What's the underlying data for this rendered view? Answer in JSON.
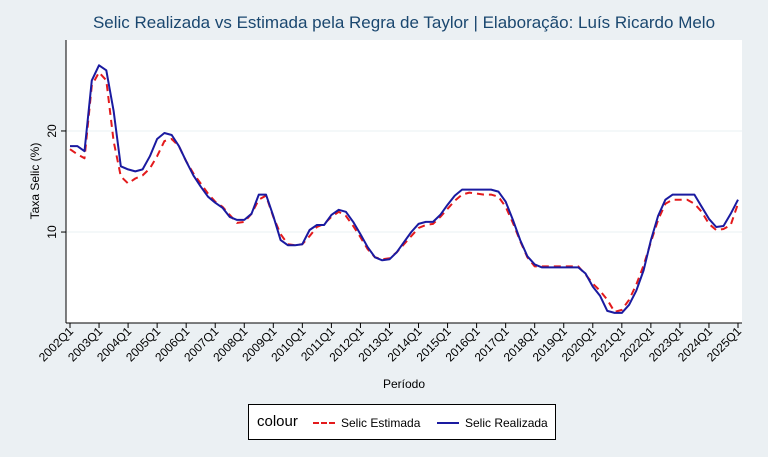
{
  "chart_data": {
    "type": "line",
    "title": "Selic Realizada vs Estimada pela Regra de Taylor | Elaboração: Luís Ricardo Melo",
    "xlabel": "Período",
    "ylabel": "Taxa Selic (%)",
    "ylim": [
      1,
      29
    ],
    "yticks": [
      10,
      20
    ],
    "xticks": [
      "2002Q1",
      "2003Q1",
      "2004Q1",
      "2005Q1",
      "2006Q1",
      "2007Q1",
      "2008Q1",
      "2009Q1",
      "2010Q1",
      "2011Q1",
      "2012Q1",
      "2013Q1",
      "2014Q1",
      "2015Q1",
      "2016Q1",
      "2017Q1",
      "2018Q1",
      "2019Q1",
      "2020Q1",
      "2021Q1",
      "2022Q1",
      "2023Q1",
      "2024Q1",
      "2025Q1"
    ],
    "grid": "horizontal",
    "legend_position": "bottom",
    "legend_title": "colour",
    "series": [
      {
        "name": "Selic Estimada",
        "color": "#e31a1c",
        "style": "dashed",
        "points": [
          [
            2002.0,
            18.2
          ],
          [
            2002.25,
            17.7
          ],
          [
            2002.5,
            17.3
          ],
          [
            2002.75,
            24.5
          ],
          [
            2003.0,
            25.8
          ],
          [
            2003.25,
            25.0
          ],
          [
            2003.5,
            19.0
          ],
          [
            2003.75,
            15.5
          ],
          [
            2004.0,
            14.8
          ],
          [
            2004.25,
            15.3
          ],
          [
            2004.5,
            15.6
          ],
          [
            2004.75,
            16.3
          ],
          [
            2005.0,
            17.5
          ],
          [
            2005.25,
            19.0
          ],
          [
            2005.5,
            19.2
          ],
          [
            2005.75,
            18.5
          ],
          [
            2006.0,
            17.0
          ],
          [
            2006.25,
            15.8
          ],
          [
            2006.5,
            14.8
          ],
          [
            2006.75,
            13.8
          ],
          [
            2007.0,
            13.0
          ],
          [
            2007.25,
            12.5
          ],
          [
            2007.5,
            11.7
          ],
          [
            2007.75,
            10.9
          ],
          [
            2008.0,
            11.0
          ],
          [
            2008.25,
            11.8
          ],
          [
            2008.5,
            13.2
          ],
          [
            2008.75,
            13.6
          ],
          [
            2009.0,
            11.5
          ],
          [
            2009.25,
            9.8
          ],
          [
            2009.5,
            8.8
          ],
          [
            2009.75,
            8.7
          ],
          [
            2010.0,
            8.8
          ],
          [
            2010.25,
            9.6
          ],
          [
            2010.5,
            10.5
          ],
          [
            2010.75,
            10.8
          ],
          [
            2011.0,
            11.5
          ],
          [
            2011.25,
            12.0
          ],
          [
            2011.5,
            11.6
          ],
          [
            2011.75,
            10.6
          ],
          [
            2012.0,
            9.5
          ],
          [
            2012.25,
            8.3
          ],
          [
            2012.5,
            7.5
          ],
          [
            2012.75,
            7.3
          ],
          [
            2013.0,
            7.4
          ],
          [
            2013.25,
            8.0
          ],
          [
            2013.5,
            8.8
          ],
          [
            2013.75,
            9.6
          ],
          [
            2014.0,
            10.4
          ],
          [
            2014.25,
            10.7
          ],
          [
            2014.5,
            10.8
          ],
          [
            2014.75,
            11.5
          ],
          [
            2015.0,
            12.3
          ],
          [
            2015.25,
            13.1
          ],
          [
            2015.5,
            13.7
          ],
          [
            2015.75,
            13.9
          ],
          [
            2016.0,
            13.8
          ],
          [
            2016.25,
            13.7
          ],
          [
            2016.5,
            13.7
          ],
          [
            2016.75,
            13.5
          ],
          [
            2017.0,
            12.5
          ],
          [
            2017.25,
            10.9
          ],
          [
            2017.5,
            9.1
          ],
          [
            2017.75,
            7.5
          ],
          [
            2018.0,
            6.6
          ],
          [
            2018.25,
            6.6
          ],
          [
            2018.5,
            6.6
          ],
          [
            2018.75,
            6.6
          ],
          [
            2019.0,
            6.6
          ],
          [
            2019.25,
            6.6
          ],
          [
            2019.5,
            6.6
          ],
          [
            2019.75,
            5.8
          ],
          [
            2020.0,
            4.9
          ],
          [
            2020.25,
            4.2
          ],
          [
            2020.5,
            3.3
          ],
          [
            2020.75,
            2.1
          ],
          [
            2021.0,
            2.3
          ],
          [
            2021.25,
            3.3
          ],
          [
            2021.5,
            4.8
          ],
          [
            2021.75,
            6.7
          ],
          [
            2022.0,
            9.0
          ],
          [
            2022.25,
            11.2
          ],
          [
            2022.5,
            12.8
          ],
          [
            2022.75,
            13.2
          ],
          [
            2023.0,
            13.2
          ],
          [
            2023.25,
            13.2
          ],
          [
            2023.5,
            12.8
          ],
          [
            2023.75,
            12.0
          ],
          [
            2024.0,
            10.8
          ],
          [
            2024.25,
            10.2
          ],
          [
            2024.5,
            10.3
          ],
          [
            2024.75,
            10.7
          ],
          [
            2025.0,
            12.8
          ]
        ]
      },
      {
        "name": "Selic Realizada",
        "color": "#1a1aa0",
        "style": "solid",
        "points": [
          [
            2002.0,
            18.5
          ],
          [
            2002.25,
            18.5
          ],
          [
            2002.5,
            18.0
          ],
          [
            2002.75,
            25.0
          ],
          [
            2003.0,
            26.5
          ],
          [
            2003.25,
            26.0
          ],
          [
            2003.5,
            22.0
          ],
          [
            2003.75,
            16.5
          ],
          [
            2004.0,
            16.2
          ],
          [
            2004.25,
            16.0
          ],
          [
            2004.5,
            16.2
          ],
          [
            2004.75,
            17.5
          ],
          [
            2005.0,
            19.2
          ],
          [
            2005.25,
            19.8
          ],
          [
            2005.5,
            19.6
          ],
          [
            2005.75,
            18.5
          ],
          [
            2006.0,
            17.0
          ],
          [
            2006.25,
            15.6
          ],
          [
            2006.5,
            14.5
          ],
          [
            2006.75,
            13.5
          ],
          [
            2007.0,
            12.9
          ],
          [
            2007.25,
            12.4
          ],
          [
            2007.5,
            11.5
          ],
          [
            2007.75,
            11.2
          ],
          [
            2008.0,
            11.2
          ],
          [
            2008.25,
            11.8
          ],
          [
            2008.5,
            13.7
          ],
          [
            2008.75,
            13.7
          ],
          [
            2009.0,
            11.6
          ],
          [
            2009.25,
            9.2
          ],
          [
            2009.5,
            8.7
          ],
          [
            2009.75,
            8.7
          ],
          [
            2010.0,
            8.8
          ],
          [
            2010.25,
            10.2
          ],
          [
            2010.5,
            10.7
          ],
          [
            2010.75,
            10.7
          ],
          [
            2011.0,
            11.7
          ],
          [
            2011.25,
            12.2
          ],
          [
            2011.5,
            12.0
          ],
          [
            2011.75,
            11.0
          ],
          [
            2012.0,
            9.8
          ],
          [
            2012.25,
            8.5
          ],
          [
            2012.5,
            7.5
          ],
          [
            2012.75,
            7.2
          ],
          [
            2013.0,
            7.3
          ],
          [
            2013.25,
            8.0
          ],
          [
            2013.5,
            9.0
          ],
          [
            2013.75,
            10.0
          ],
          [
            2014.0,
            10.8
          ],
          [
            2014.25,
            11.0
          ],
          [
            2014.5,
            11.0
          ],
          [
            2014.75,
            11.7
          ],
          [
            2015.0,
            12.7
          ],
          [
            2015.25,
            13.6
          ],
          [
            2015.5,
            14.2
          ],
          [
            2015.75,
            14.2
          ],
          [
            2016.0,
            14.2
          ],
          [
            2016.25,
            14.2
          ],
          [
            2016.5,
            14.2
          ],
          [
            2016.75,
            14.0
          ],
          [
            2017.0,
            13.0
          ],
          [
            2017.25,
            11.2
          ],
          [
            2017.5,
            9.2
          ],
          [
            2017.75,
            7.6
          ],
          [
            2018.0,
            6.8
          ],
          [
            2018.25,
            6.5
          ],
          [
            2018.5,
            6.5
          ],
          [
            2018.75,
            6.5
          ],
          [
            2019.0,
            6.5
          ],
          [
            2019.25,
            6.5
          ],
          [
            2019.5,
            6.5
          ],
          [
            2019.75,
            5.9
          ],
          [
            2020.0,
            4.6
          ],
          [
            2020.25,
            3.7
          ],
          [
            2020.5,
            2.2
          ],
          [
            2020.75,
            2.0
          ],
          [
            2021.0,
            2.0
          ],
          [
            2021.25,
            2.8
          ],
          [
            2021.5,
            4.2
          ],
          [
            2021.75,
            6.2
          ],
          [
            2022.0,
            9.2
          ],
          [
            2022.25,
            11.6
          ],
          [
            2022.5,
            13.2
          ],
          [
            2022.75,
            13.7
          ],
          [
            2023.0,
            13.7
          ],
          [
            2023.25,
            13.7
          ],
          [
            2023.5,
            13.7
          ],
          [
            2023.75,
            12.5
          ],
          [
            2024.0,
            11.3
          ],
          [
            2024.25,
            10.5
          ],
          [
            2024.5,
            10.6
          ],
          [
            2024.75,
            11.8
          ],
          [
            2025.0,
            13.2
          ]
        ]
      }
    ]
  }
}
